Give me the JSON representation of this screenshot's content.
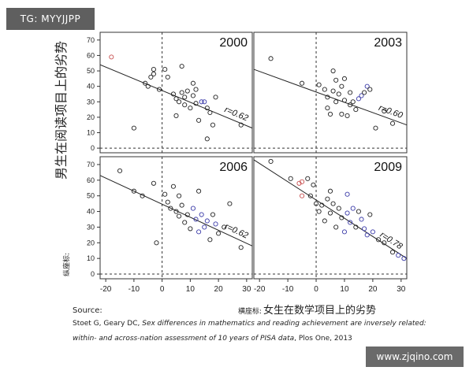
{
  "watermark_top": "TG: MYYJJPP",
  "watermark_bottom": "www.zjqino.com",
  "labels": {
    "y_axis_small": "纵座标:",
    "y_axis": "男生在阅读项目上的劣势",
    "x_axis_small": "横座标:",
    "x_axis": "女生在数学项目上的劣势"
  },
  "source": "Source:",
  "citation": {
    "authors": "Stoet G, Geary DC, ",
    "title_line1": "Sex differences in mathematics and reading achievement are inversely related:",
    "title_line2": "within- and across-nation assessment of 10 years of PISA data",
    "journal": ", Plos One, 2013"
  },
  "colors": {
    "black": "#222222",
    "blue": "#3a3aa8",
    "red": "#c85050"
  },
  "chart_data": {
    "type": "scatter",
    "x_ticks": [
      -20,
      -10,
      0,
      10,
      20,
      30
    ],
    "y_ticks": [
      0,
      10,
      20,
      30,
      40,
      50,
      60,
      70
    ],
    "xlim": [
      -22,
      32
    ],
    "ylim": [
      -3,
      75
    ],
    "reference_lines": {
      "x": 0,
      "y": 0
    },
    "panels": [
      {
        "year": "2000",
        "r_label": "r=0.62",
        "trend": {
          "x1": -22,
          "y1": 54,
          "x2": 32,
          "y2": 13
        },
        "points": [
          {
            "x": -18,
            "y": 59,
            "c": "red"
          },
          {
            "x": -10,
            "y": 13,
            "c": "black"
          },
          {
            "x": -6,
            "y": 42,
            "c": "black"
          },
          {
            "x": -5,
            "y": 40,
            "c": "black"
          },
          {
            "x": -4,
            "y": 46,
            "c": "black"
          },
          {
            "x": -3,
            "y": 51,
            "c": "black"
          },
          {
            "x": -3,
            "y": 48,
            "c": "black"
          },
          {
            "x": -1,
            "y": 38,
            "c": "black"
          },
          {
            "x": 1,
            "y": 51,
            "c": "black"
          },
          {
            "x": 2,
            "y": 46,
            "c": "black"
          },
          {
            "x": 4,
            "y": 35,
            "c": "black"
          },
          {
            "x": 5,
            "y": 32,
            "c": "black"
          },
          {
            "x": 5,
            "y": 21,
            "c": "black"
          },
          {
            "x": 6,
            "y": 30,
            "c": "black"
          },
          {
            "x": 7,
            "y": 53,
            "c": "black"
          },
          {
            "x": 7,
            "y": 36,
            "c": "black"
          },
          {
            "x": 8,
            "y": 28,
            "c": "black"
          },
          {
            "x": 8,
            "y": 33,
            "c": "black"
          },
          {
            "x": 9,
            "y": 37,
            "c": "black"
          },
          {
            "x": 10,
            "y": 26,
            "c": "black"
          },
          {
            "x": 11,
            "y": 42,
            "c": "black"
          },
          {
            "x": 11,
            "y": 34,
            "c": "black"
          },
          {
            "x": 12,
            "y": 29,
            "c": "black"
          },
          {
            "x": 12,
            "y": 38,
            "c": "black"
          },
          {
            "x": 13,
            "y": 18,
            "c": "black"
          },
          {
            "x": 14,
            "y": 30,
            "c": "blue"
          },
          {
            "x": 15,
            "y": 30,
            "c": "blue"
          },
          {
            "x": 16,
            "y": 26,
            "c": "black"
          },
          {
            "x": 16,
            "y": 6,
            "c": "black"
          },
          {
            "x": 17,
            "y": 23,
            "c": "black"
          },
          {
            "x": 18,
            "y": 15,
            "c": "black"
          },
          {
            "x": 19,
            "y": 33,
            "c": "black"
          },
          {
            "x": 28,
            "y": 15,
            "c": "black"
          }
        ]
      },
      {
        "year": "2003",
        "r_label": "r=0.60",
        "trend": {
          "x1": -22,
          "y1": 51,
          "x2": 32,
          "y2": 15
        },
        "points": [
          {
            "x": -16,
            "y": 58,
            "c": "black"
          },
          {
            "x": -5,
            "y": 42,
            "c": "black"
          },
          {
            "x": 1,
            "y": 41,
            "c": "black"
          },
          {
            "x": 3,
            "y": 38,
            "c": "black"
          },
          {
            "x": 4,
            "y": 33,
            "c": "black"
          },
          {
            "x": 4,
            "y": 26,
            "c": "black"
          },
          {
            "x": 5,
            "y": 22,
            "c": "black"
          },
          {
            "x": 6,
            "y": 50,
            "c": "black"
          },
          {
            "x": 6,
            "y": 37,
            "c": "black"
          },
          {
            "x": 7,
            "y": 44,
            "c": "black"
          },
          {
            "x": 7,
            "y": 30,
            "c": "black"
          },
          {
            "x": 8,
            "y": 35,
            "c": "black"
          },
          {
            "x": 9,
            "y": 22,
            "c": "black"
          },
          {
            "x": 9,
            "y": 40,
            "c": "black"
          },
          {
            "x": 10,
            "y": 31,
            "c": "black"
          },
          {
            "x": 10,
            "y": 45,
            "c": "black"
          },
          {
            "x": 11,
            "y": 21,
            "c": "black"
          },
          {
            "x": 12,
            "y": 36,
            "c": "black"
          },
          {
            "x": 12,
            "y": 28,
            "c": "black"
          },
          {
            "x": 13,
            "y": 30,
            "c": "black"
          },
          {
            "x": 14,
            "y": 25,
            "c": "black"
          },
          {
            "x": 15,
            "y": 32,
            "c": "blue"
          },
          {
            "x": 16,
            "y": 34,
            "c": "blue"
          },
          {
            "x": 17,
            "y": 36,
            "c": "black"
          },
          {
            "x": 18,
            "y": 40,
            "c": "blue"
          },
          {
            "x": 19,
            "y": 38,
            "c": "black"
          },
          {
            "x": 21,
            "y": 13,
            "c": "black"
          },
          {
            "x": 24,
            "y": 24,
            "c": "black"
          },
          {
            "x": 27,
            "y": 16,
            "c": "black"
          }
        ]
      },
      {
        "year": "2006",
        "r_label": "r=0.62",
        "trend": {
          "x1": -22,
          "y1": 63,
          "x2": 32,
          "y2": 18
        },
        "points": [
          {
            "x": -15,
            "y": 66,
            "c": "black"
          },
          {
            "x": -10,
            "y": 53,
            "c": "black"
          },
          {
            "x": -7,
            "y": 50,
            "c": "black"
          },
          {
            "x": -3,
            "y": 58,
            "c": "black"
          },
          {
            "x": -2,
            "y": 20,
            "c": "black"
          },
          {
            "x": 1,
            "y": 51,
            "c": "black"
          },
          {
            "x": 2,
            "y": 46,
            "c": "black"
          },
          {
            "x": 3,
            "y": 42,
            "c": "black"
          },
          {
            "x": 4,
            "y": 56,
            "c": "black"
          },
          {
            "x": 5,
            "y": 40,
            "c": "black"
          },
          {
            "x": 6,
            "y": 50,
            "c": "black"
          },
          {
            "x": 6,
            "y": 37,
            "c": "black"
          },
          {
            "x": 7,
            "y": 44,
            "c": "black"
          },
          {
            "x": 8,
            "y": 33,
            "c": "black"
          },
          {
            "x": 9,
            "y": 38,
            "c": "black"
          },
          {
            "x": 10,
            "y": 29,
            "c": "black"
          },
          {
            "x": 11,
            "y": 42,
            "c": "blue"
          },
          {
            "x": 12,
            "y": 35,
            "c": "blue"
          },
          {
            "x": 13,
            "y": 53,
            "c": "black"
          },
          {
            "x": 13,
            "y": 27,
            "c": "blue"
          },
          {
            "x": 14,
            "y": 38,
            "c": "blue"
          },
          {
            "x": 15,
            "y": 30,
            "c": "blue"
          },
          {
            "x": 16,
            "y": 34,
            "c": "blue"
          },
          {
            "x": 17,
            "y": 22,
            "c": "black"
          },
          {
            "x": 18,
            "y": 38,
            "c": "black"
          },
          {
            "x": 19,
            "y": 32,
            "c": "blue"
          },
          {
            "x": 20,
            "y": 26,
            "c": "black"
          },
          {
            "x": 22,
            "y": 30,
            "c": "black"
          },
          {
            "x": 24,
            "y": 45,
            "c": "black"
          },
          {
            "x": 28,
            "y": 17,
            "c": "black"
          }
        ]
      },
      {
        "year": "2009",
        "r_label": "r=0.78",
        "trend": {
          "x1": -22,
          "y1": 73,
          "x2": 32,
          "y2": 10
        },
        "points": [
          {
            "x": -16,
            "y": 72,
            "c": "black"
          },
          {
            "x": -9,
            "y": 61,
            "c": "black"
          },
          {
            "x": -6,
            "y": 58,
            "c": "red"
          },
          {
            "x": -5,
            "y": 59,
            "c": "red"
          },
          {
            "x": -5,
            "y": 50,
            "c": "red"
          },
          {
            "x": -3,
            "y": 61,
            "c": "black"
          },
          {
            "x": -2,
            "y": 50,
            "c": "black"
          },
          {
            "x": -1,
            "y": 57,
            "c": "black"
          },
          {
            "x": 0,
            "y": 45,
            "c": "black"
          },
          {
            "x": 1,
            "y": 40,
            "c": "black"
          },
          {
            "x": 2,
            "y": 44,
            "c": "black"
          },
          {
            "x": 3,
            "y": 34,
            "c": "black"
          },
          {
            "x": 4,
            "y": 48,
            "c": "black"
          },
          {
            "x": 5,
            "y": 53,
            "c": "black"
          },
          {
            "x": 5,
            "y": 39,
            "c": "black"
          },
          {
            "x": 6,
            "y": 45,
            "c": "black"
          },
          {
            "x": 7,
            "y": 30,
            "c": "black"
          },
          {
            "x": 8,
            "y": 42,
            "c": "black"
          },
          {
            "x": 9,
            "y": 36,
            "c": "black"
          },
          {
            "x": 10,
            "y": 27,
            "c": "blue"
          },
          {
            "x": 11,
            "y": 51,
            "c": "blue"
          },
          {
            "x": 11,
            "y": 39,
            "c": "blue"
          },
          {
            "x": 12,
            "y": 33,
            "c": "blue"
          },
          {
            "x": 13,
            "y": 42,
            "c": "blue"
          },
          {
            "x": 14,
            "y": 30,
            "c": "black"
          },
          {
            "x": 15,
            "y": 40,
            "c": "black"
          },
          {
            "x": 16,
            "y": 35,
            "c": "blue"
          },
          {
            "x": 17,
            "y": 29,
            "c": "blue"
          },
          {
            "x": 18,
            "y": 25,
            "c": "blue"
          },
          {
            "x": 19,
            "y": 38,
            "c": "black"
          },
          {
            "x": 20,
            "y": 27,
            "c": "blue"
          },
          {
            "x": 22,
            "y": 22,
            "c": "black"
          },
          {
            "x": 24,
            "y": 20,
            "c": "black"
          },
          {
            "x": 27,
            "y": 14,
            "c": "black"
          },
          {
            "x": 29,
            "y": 12,
            "c": "blue"
          },
          {
            "x": 31,
            "y": 10,
            "c": "blue"
          }
        ]
      }
    ]
  }
}
